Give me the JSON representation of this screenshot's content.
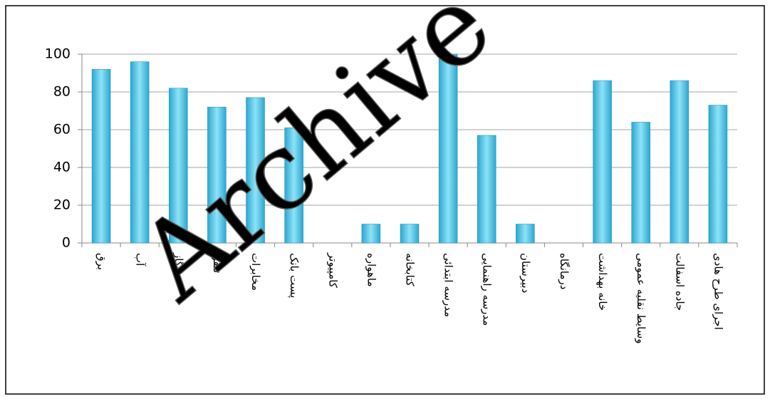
{
  "chart_data": {
    "type": "bar",
    "watermark": "Archive",
    "categories": [
      "برق",
      "آب",
      "گاز",
      "تلفن",
      "مخابرات",
      "پست بانک",
      "کامپیوتر",
      "ماهواره",
      "کتابخانه",
      "مدرسه ابتدائی",
      "مدرسه راهنمایی",
      "دبیرستان",
      "درمانگاه",
      "خانه بهداشت",
      "وسایط نقلیه عمومی",
      "جاده اسفالت",
      "اجرای طرح هادی"
    ],
    "values": [
      92,
      96,
      82,
      72,
      77,
      61,
      0,
      10,
      10,
      100,
      57,
      10,
      0,
      86,
      64,
      86,
      73
    ],
    "color": "#2aa8d0",
    "ylim": [
      0,
      100
    ],
    "yticks": [
      0,
      20,
      40,
      60,
      80,
      100
    ],
    "grid": true
  }
}
